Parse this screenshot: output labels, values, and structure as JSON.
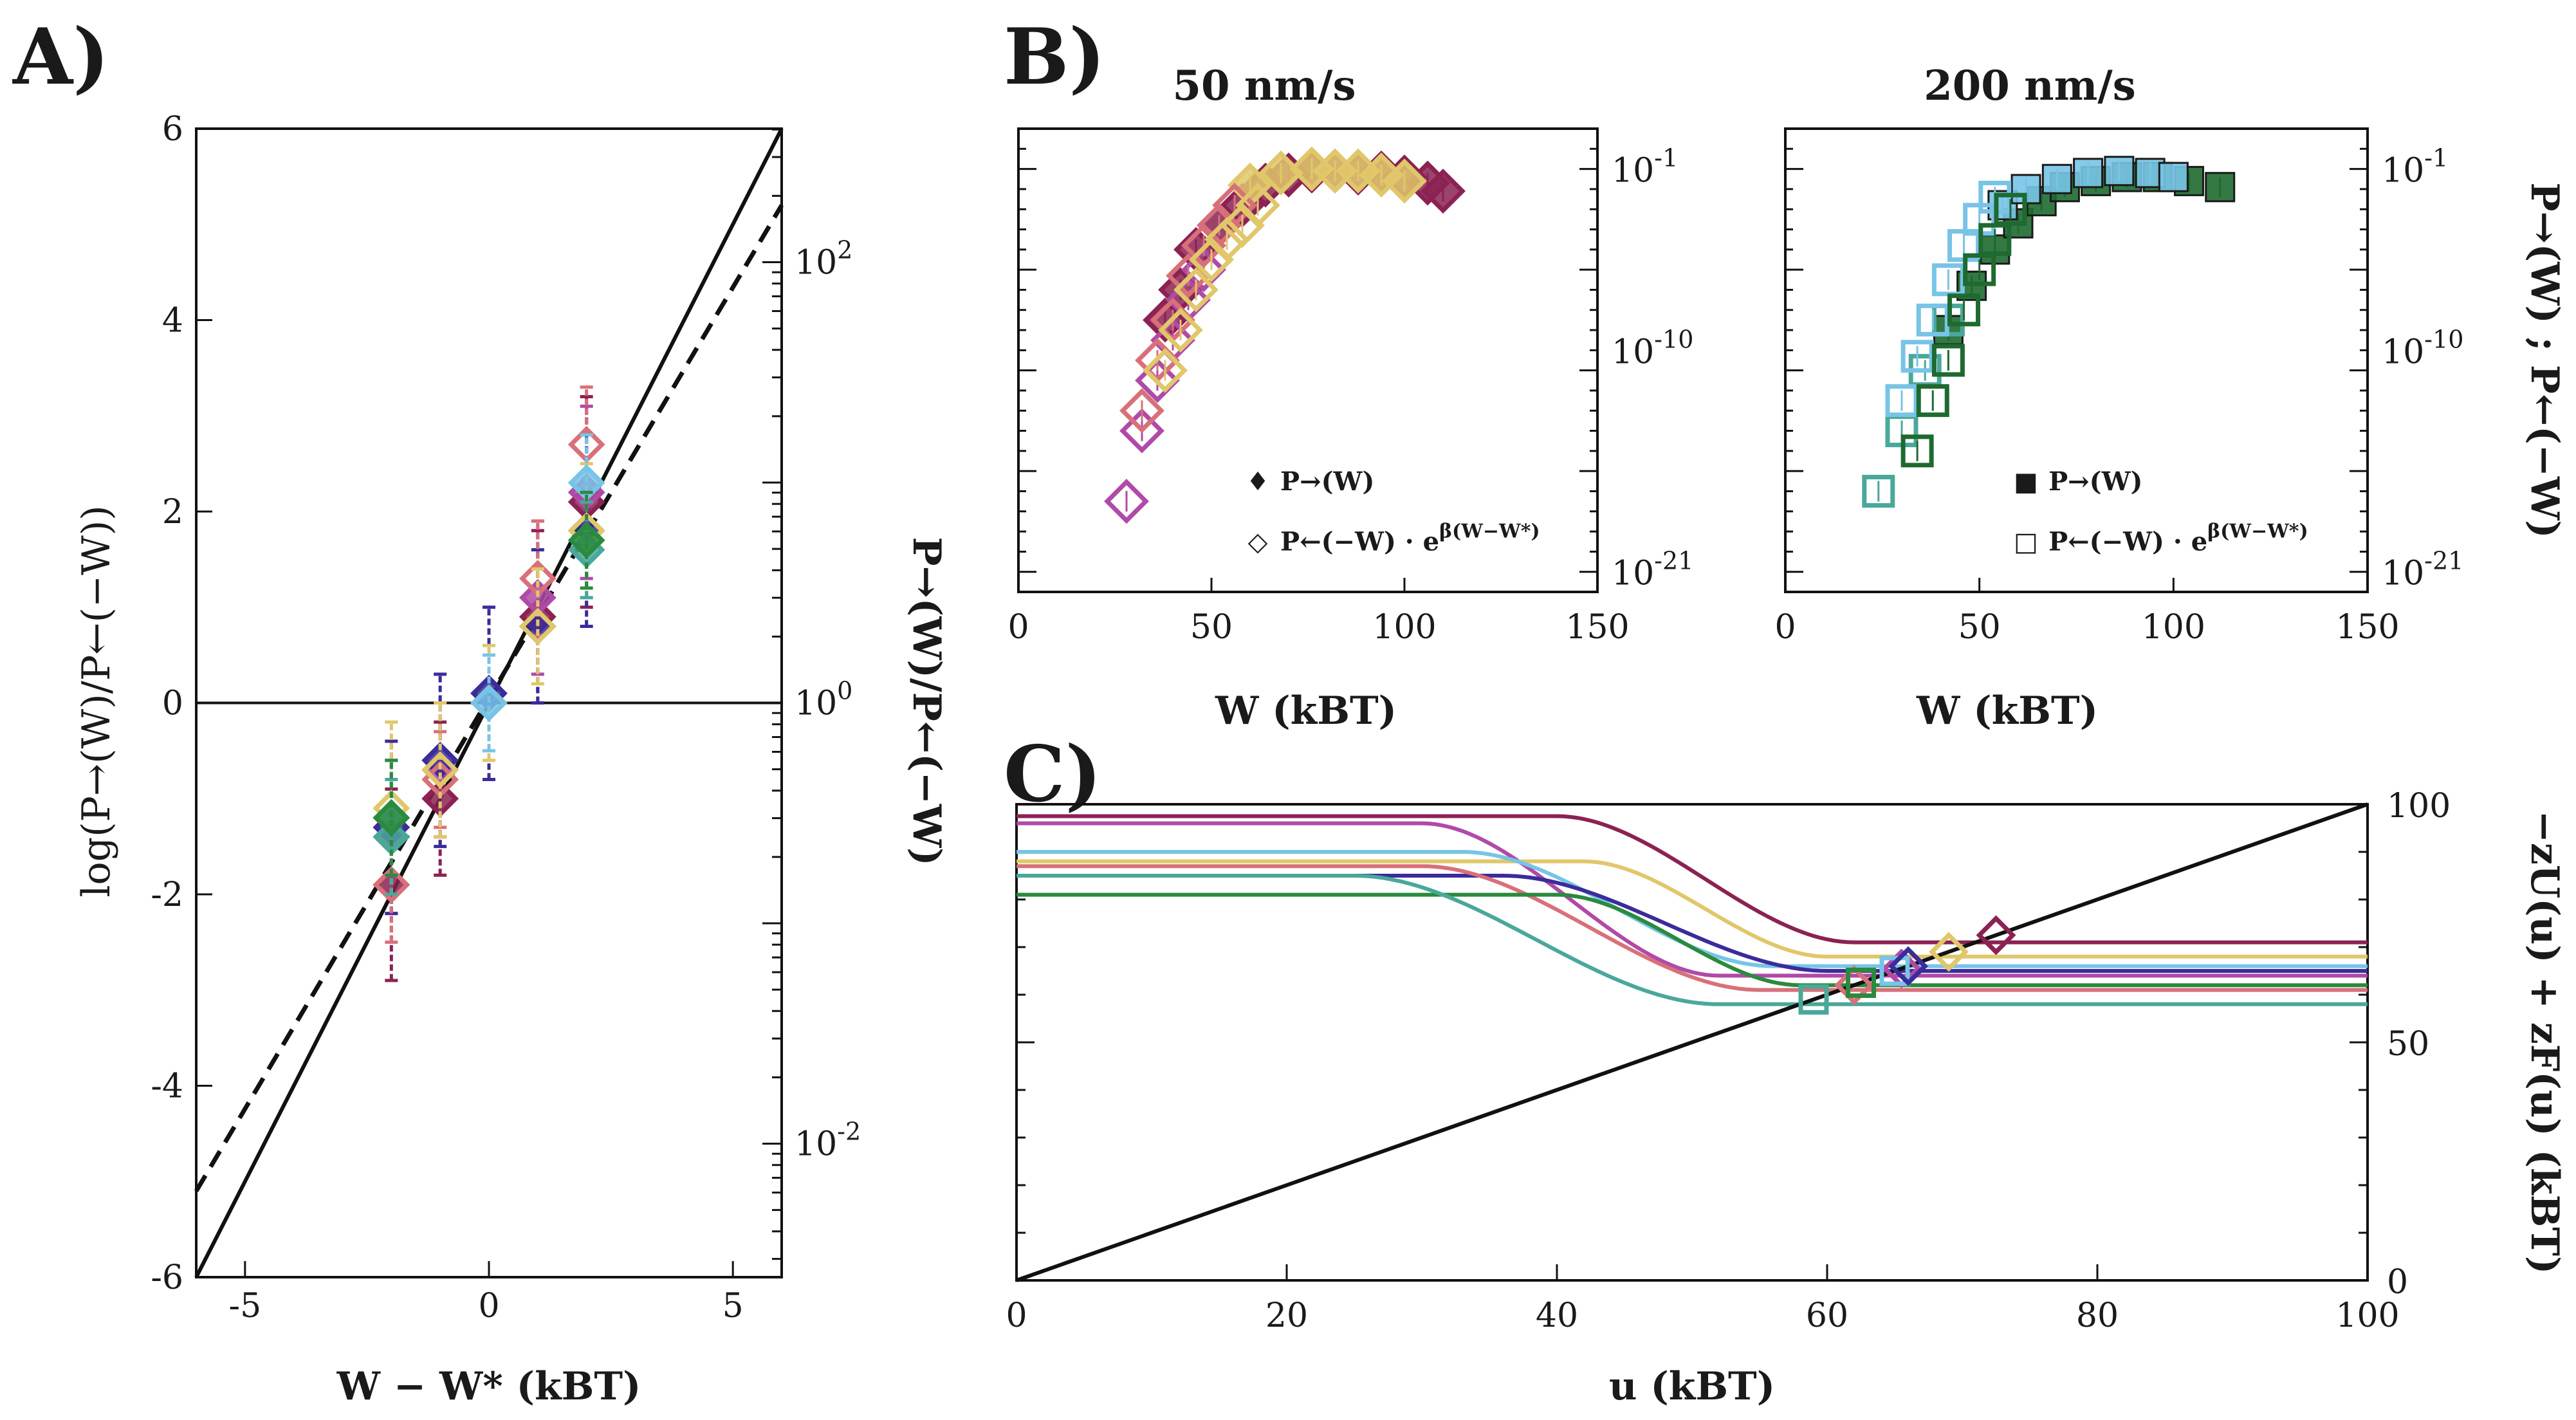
{
  "colors": {
    "plum": "#8b2252",
    "magenta": "#b04aa8",
    "indigo": "#3a2c9a",
    "rose": "#d8707a",
    "gold": "#e0c76a",
    "sky": "#78c4e6",
    "teal": "#4aa89a",
    "green": "#2a8a3e",
    "darkgreen": "#1e6a30",
    "black": "#111111"
  },
  "panel_labels": {
    "a": "A)",
    "b": "B)",
    "c": "C)"
  },
  "chart_data": [
    {
      "id": "A",
      "type": "scatter",
      "xlabel": "W − W* (kBT)",
      "ylabel": "log(P→(W)/P←(−W))",
      "ylabel_right": "P→(W)/P←(−W)",
      "xlim": [
        -6,
        6
      ],
      "ylim": [
        -6,
        6
      ],
      "xticks": [
        "-5",
        "0",
        "5"
      ],
      "yticks": [
        "-6",
        "-4",
        "-2",
        "0",
        "2",
        "4",
        "6"
      ],
      "yticks_right": [
        "10",
        "10",
        "10"
      ],
      "yticks_right_exp": [
        "-2",
        "0",
        "2"
      ],
      "lines": [
        {
          "name": "slope 1",
          "style": "solid",
          "x": [
            -6,
            6
          ],
          "y": [
            -6,
            6
          ]
        },
        {
          "name": "fit",
          "style": "dashed",
          "x": [
            -6,
            6
          ],
          "y": [
            -5.1,
            5.2
          ]
        },
        {
          "name": "zero",
          "style": "solid-thin",
          "x": [
            -6,
            6
          ],
          "y": [
            0,
            0
          ]
        }
      ],
      "series": [
        {
          "name": "plum",
          "x": [
            -2,
            -1,
            1,
            2
          ],
          "y": [
            -1.9,
            -1.0,
            0.9,
            2.1
          ],
          "err": [
            1.0,
            0.8,
            0.9,
            1.1
          ]
        },
        {
          "name": "magenta",
          "x": [
            -2,
            -1,
            1,
            2
          ],
          "y": [
            -1.4,
            -0.7,
            1.1,
            2.2
          ],
          "err": [
            0.8,
            0.7,
            0.8,
            0.9
          ]
        },
        {
          "name": "indigo",
          "x": [
            -2,
            -1,
            0,
            1,
            2
          ],
          "y": [
            -1.3,
            -0.6,
            0.1,
            0.8,
            1.8
          ],
          "err": [
            0.9,
            0.9,
            0.9,
            0.8,
            1.0
          ]
        },
        {
          "name": "rose",
          "x": [
            -2,
            -1,
            1,
            2
          ],
          "y": [
            -1.9,
            -0.8,
            1.3,
            2.7
          ],
          "err": [
            0.6,
            0.5,
            0.6,
            0.6
          ]
        },
        {
          "name": "gold",
          "x": [
            -2,
            -1,
            0,
            1,
            2
          ],
          "y": [
            -1.1,
            -0.7,
            0.0,
            0.8,
            1.8
          ],
          "err": [
            0.9,
            0.7,
            0.6,
            0.6,
            0.7
          ]
        },
        {
          "name": "sky",
          "x": [
            -2,
            0,
            2
          ],
          "y": [
            -1.2,
            0.0,
            2.3
          ],
          "err": [
            0.6,
            0.5,
            0.5
          ]
        },
        {
          "name": "teal",
          "x": [
            -2,
            2
          ],
          "y": [
            -1.4,
            1.6
          ],
          "err": [
            0.6,
            0.5
          ]
        },
        {
          "name": "green",
          "x": [
            -2,
            2
          ],
          "y": [
            -1.2,
            1.7
          ],
          "err": [
            0.6,
            0.5
          ]
        }
      ]
    },
    {
      "id": "B1",
      "type": "scatter",
      "title": "50 nm/s",
      "xlabel": "W (kBT)",
      "xlim": [
        0,
        150
      ],
      "ylim_log10": [
        -22,
        1
      ],
      "xticks": [
        "0",
        "50",
        "100",
        "150"
      ],
      "yticks_right": [
        "10",
        "10",
        "10"
      ],
      "yticks_right_exp": [
        "-1",
        "-10",
        "-21"
      ],
      "legend": [
        {
          "symbol": "♦",
          "text": "P→(W)"
        },
        {
          "symbol": "◇",
          "text": "P←(−W) · e",
          "sup": "β(W−W*)"
        }
      ],
      "legend_position": "bottom-right",
      "series": [
        {
          "name": "forward plum",
          "filled": true,
          "x": [
            38,
            42,
            46,
            52,
            58,
            64,
            70,
            76,
            82,
            88,
            94,
            100,
            106,
            110
          ],
          "log10y": [
            -8.5,
            -7.0,
            -5.0,
            -3.8,
            -2.8,
            -1.8,
            -1.3,
            -1.1,
            -1.1,
            -1.2,
            -1.2,
            -1.4,
            -1.7,
            -2.1
          ]
        },
        {
          "name": "forward gold",
          "filled": true,
          "x": [
            60,
            68,
            76,
            82,
            88,
            94,
            100
          ],
          "log10y": [
            -1.8,
            -1.2,
            -1.0,
            -1.1,
            -1.1,
            -1.3,
            -1.6
          ]
        },
        {
          "name": "reverse magenta",
          "filled": false,
          "x": [
            28,
            32,
            36,
            40,
            44,
            48
          ],
          "log10y": [
            -17.5,
            -14.0,
            -11.5,
            -9.5,
            -7.5,
            -6.0
          ]
        },
        {
          "name": "reverse rose",
          "filled": false,
          "x": [
            32,
            36,
            40,
            44,
            48,
            52,
            56
          ],
          "log10y": [
            -13.0,
            -10.5,
            -8.5,
            -6.3,
            -4.8,
            -3.8,
            -2.8
          ]
        },
        {
          "name": "reverse gold",
          "filled": false,
          "x": [
            38,
            42,
            46,
            50,
            54,
            58,
            62
          ],
          "log10y": [
            -11.0,
            -9.0,
            -7.0,
            -5.5,
            -4.5,
            -3.8,
            -2.8
          ]
        }
      ]
    },
    {
      "id": "B2",
      "type": "scatter",
      "title": "200 nm/s",
      "xlabel": "W (kBT)",
      "ylabel_right": "P→(W) ; P←(−W)",
      "xlim": [
        0,
        150
      ],
      "ylim_log10": [
        -22,
        1
      ],
      "xticks": [
        "0",
        "50",
        "100",
        "150"
      ],
      "yticks_right": [
        "10",
        "10",
        "10"
      ],
      "yticks_right_exp": [
        "-1",
        "-10",
        "-21"
      ],
      "legend": [
        {
          "symbol": "■",
          "text": "P→(W)"
        },
        {
          "symbol": "□",
          "text": "P←(−W) · e",
          "sup": "β(W−W*)"
        }
      ],
      "legend_position": "bottom-right",
      "series": [
        {
          "name": "forward darkgreen",
          "filled": true,
          "x": [
            42,
            48,
            54,
            60,
            66,
            72,
            80,
            88,
            96,
            104,
            112
          ],
          "log10y": [
            -9.0,
            -6.8,
            -5.0,
            -3.7,
            -2.6,
            -1.9,
            -1.6,
            -1.4,
            -1.4,
            -1.6,
            -1.9
          ]
        },
        {
          "name": "forward sky",
          "filled": true,
          "x": [
            56,
            62,
            70,
            78,
            86,
            94,
            100
          ],
          "log10y": [
            -2.8,
            -2.0,
            -1.5,
            -1.2,
            -1.1,
            -1.2,
            -1.4
          ]
        },
        {
          "name": "reverse teal",
          "filled": false,
          "x": [
            24,
            30,
            36,
            42
          ],
          "log10y": [
            -17.0,
            -14.0,
            -11.0,
            -8.5
          ]
        },
        {
          "name": "reverse sky",
          "filled": false,
          "x": [
            30,
            34,
            38,
            42,
            46,
            50,
            54
          ],
          "log10y": [
            -12.5,
            -10.3,
            -8.5,
            -6.5,
            -4.8,
            -3.5,
            -2.4
          ]
        },
        {
          "name": "reverse darkgreen",
          "filled": false,
          "x": [
            34,
            38,
            42,
            46,
            50,
            54,
            58
          ],
          "log10y": [
            -15.0,
            -12.5,
            -10.5,
            -8.0,
            -6.0,
            -4.5,
            -3.0
          ]
        }
      ]
    },
    {
      "id": "C",
      "type": "line",
      "xlabel": "u (kBT)",
      "ylabel_right": "−zU(u) + zF(u) (kBT)",
      "xlim": [
        0,
        100
      ],
      "ylim": [
        0,
        100
      ],
      "xticks": [
        "0",
        "20",
        "40",
        "60",
        "80",
        "100"
      ],
      "yticks_right": [
        "0",
        "50",
        "100"
      ],
      "series": [
        {
          "name": "plum",
          "high": 97.5,
          "low": 71,
          "x0": 40,
          "x1": 62,
          "cross": 72.5,
          "marker": "diamond"
        },
        {
          "name": "magenta",
          "high": 96,
          "low": 64,
          "x0": 30,
          "x1": 52,
          "cross": 65.5,
          "marker": "diamond"
        },
        {
          "name": "gold",
          "high": 88,
          "low": 68,
          "x0": 42,
          "x1": 60,
          "cross": 69,
          "marker": "diamond"
        },
        {
          "name": "sky",
          "high": 90,
          "low": 66,
          "x0": 33,
          "x1": 56,
          "cross": 65,
          "marker": "square"
        },
        {
          "name": "indigo",
          "high": 85,
          "low": 65,
          "x0": 36,
          "x1": 60,
          "cross": 66,
          "marker": "diamond"
        },
        {
          "name": "rose",
          "high": 87,
          "low": 61,
          "x0": 30,
          "x1": 55,
          "cross": 62,
          "marker": "diamond"
        },
        {
          "name": "green",
          "high": 81,
          "low": 62,
          "x0": 40,
          "x1": 58,
          "cross": 62.5,
          "marker": "square"
        },
        {
          "name": "teal",
          "high": 85,
          "low": 58,
          "x0": 25,
          "x1": 52,
          "cross": 59,
          "marker": "square"
        },
        {
          "name": "diagonal",
          "style": "black",
          "x": [
            0,
            100
          ],
          "y": [
            0,
            100
          ]
        }
      ]
    }
  ]
}
